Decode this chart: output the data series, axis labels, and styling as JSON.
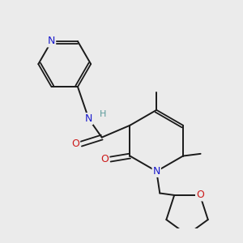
{
  "bg_color": "#ebebeb",
  "atom_colors": {
    "C": "#1a1a1a",
    "N": "#1a1acc",
    "O": "#cc1a1a",
    "H": "#5a9a9a"
  },
  "figsize": [
    3.0,
    3.0
  ],
  "dpi": 100
}
